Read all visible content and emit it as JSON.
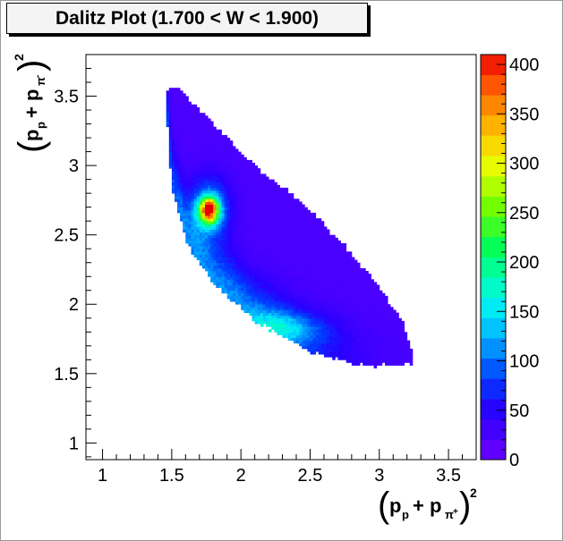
{
  "chart_data": {
    "type": "heatmap",
    "title": "Dalitz Plot (1.700 < W < 1.900)",
    "xlabel": "(p_p + p_π+)^2",
    "ylabel": "(p_p + p_π-)^2",
    "xlim": [
      0.88,
      3.7
    ],
    "ylim": [
      0.88,
      3.8
    ],
    "x_ticks": [
      "1",
      "1.5",
      "2",
      "2.5",
      "3",
      "3.5"
    ],
    "y_ticks": [
      "1",
      "1.5",
      "2",
      "2.5",
      "3",
      "3.5"
    ],
    "colorbar": {
      "zlim": [
        0,
        410
      ],
      "ticks": [
        "0",
        "50",
        "100",
        "150",
        "200",
        "250",
        "300",
        "350",
        "400"
      ]
    },
    "region": {
      "boundary_upper_left": [
        [
          1.46,
          3.55
        ],
        [
          1.56,
          3.55
        ],
        [
          1.8,
          3.3
        ],
        [
          2.1,
          3.0
        ],
        [
          2.45,
          2.72
        ],
        [
          2.75,
          2.42
        ],
        [
          3.0,
          2.12
        ],
        [
          3.18,
          1.85
        ],
        [
          3.25,
          1.6
        ]
      ],
      "boundary_lower_right": [
        [
          1.46,
          3.4
        ],
        [
          1.5,
          2.85
        ],
        [
          1.62,
          2.42
        ],
        [
          1.82,
          2.13
        ],
        [
          2.1,
          1.88
        ],
        [
          2.5,
          1.66
        ],
        [
          2.88,
          1.56
        ],
        [
          3.25,
          1.56
        ]
      ],
      "peak": {
        "x": 1.76,
        "y": 2.68,
        "count": 405
      },
      "secondary_ridge": {
        "x": 2.35,
        "y": 1.85,
        "count": 130
      }
    }
  }
}
